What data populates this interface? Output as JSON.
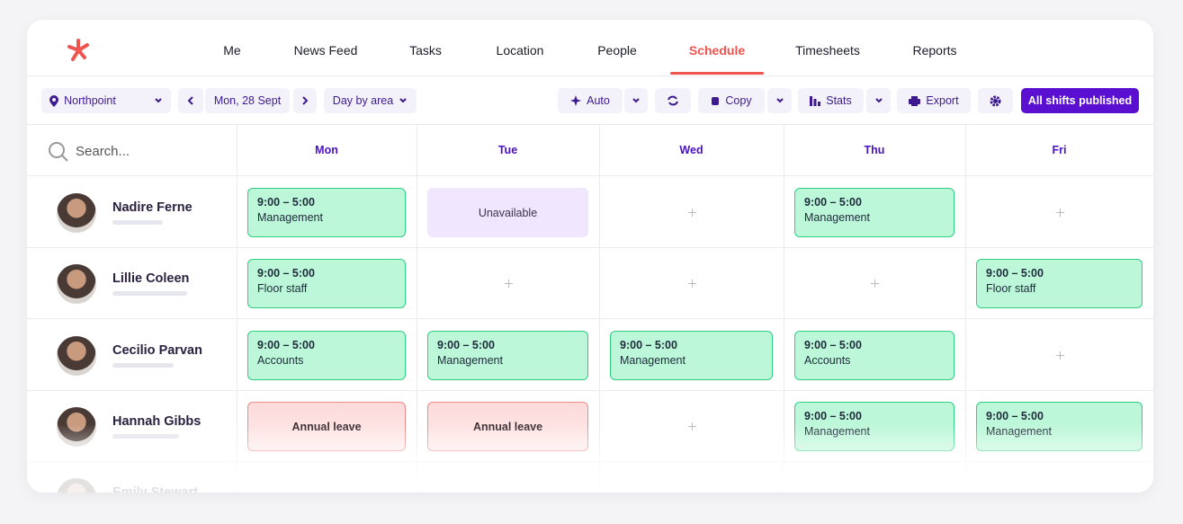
{
  "nav": {
    "items": [
      "Me",
      "News Feed",
      "Tasks",
      "Location",
      "People",
      "Schedule",
      "Timesheets",
      "Reports"
    ],
    "active": 5
  },
  "toolbar": {
    "location": "Northpoint",
    "date": "Mon, 28 Sept",
    "view": "Day by area",
    "auto": "Auto",
    "copy": "Copy",
    "stats": "Stats",
    "export": "Export",
    "publish": "All shifts published"
  },
  "search_placeholder": "Search...",
  "days": [
    "Mon",
    "Tue",
    "Wed",
    "Thu",
    "Fri"
  ],
  "rows": [
    {
      "name": "Nadire Ferne",
      "cells": [
        {
          "type": "shift",
          "time": "9:00 – 5:00",
          "role": "Management"
        },
        {
          "type": "unavailable",
          "label": "Unavailable"
        },
        null,
        {
          "type": "shift",
          "time": "9:00 – 5:00",
          "role": "Management"
        },
        null
      ]
    },
    {
      "name": "Lillie Coleen",
      "cells": [
        {
          "type": "shift",
          "time": "9:00 – 5:00",
          "role": "Floor staff"
        },
        null,
        null,
        null,
        {
          "type": "shift",
          "time": "9:00 – 5:00",
          "role": "Floor staff"
        }
      ]
    },
    {
      "name": "Cecilio Parvan",
      "cells": [
        {
          "type": "shift",
          "time": "9:00 – 5:00",
          "role": "Accounts"
        },
        {
          "type": "shift",
          "time": "9:00 – 5:00",
          "role": "Management"
        },
        {
          "type": "shift",
          "time": "9:00 – 5:00",
          "role": "Management"
        },
        {
          "type": "shift",
          "time": "9:00 – 5:00",
          "role": "Accounts"
        },
        null
      ]
    },
    {
      "name": "Hannah Gibbs",
      "cells": [
        {
          "type": "leave",
          "label": "Annual leave"
        },
        {
          "type": "leave",
          "label": "Annual leave"
        },
        null,
        {
          "type": "shift",
          "time": "9:00 – 5:00",
          "role": "Management"
        },
        {
          "type": "shift",
          "time": "9:00 – 5:00",
          "role": "Management"
        }
      ]
    },
    {
      "name": "Emily Stewart",
      "cells": [
        null,
        null,
        null,
        null,
        null
      ]
    }
  ]
}
